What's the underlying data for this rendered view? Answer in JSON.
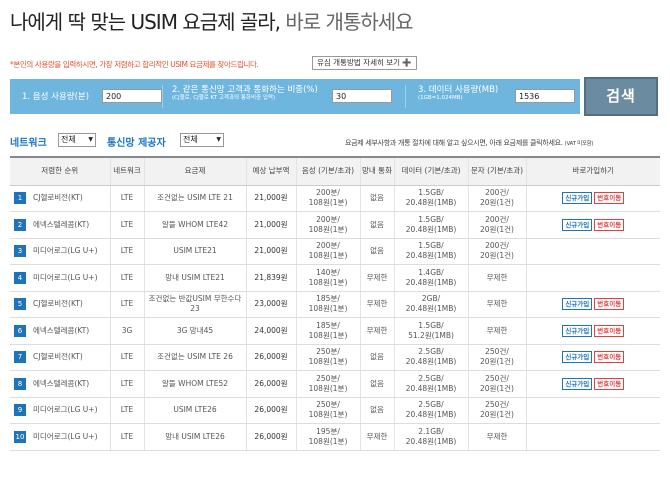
{
  "header": {
    "title_main": "나에게 딱 맞는 USIM 요금제 골라,",
    "title_sub": " 바로 개통하세요"
  },
  "notice": "*본인의 사용량을 입력하시면, 가장 저렴하고 합리적인 USIM 요금제를 찾아드립니다.",
  "guide_button": "유심 개통방법 자세히 보기 ➕",
  "search": {
    "voice_label": "1. 음성 사용량(분)",
    "voice_value": "200",
    "same_net_label": "2. 같은 통신망 고객과 통화하는 비중(%)",
    "same_net_sub": "(CJ헬로, CJ헬로 KT 고객과의 통화비중 입력)",
    "same_net_value": "30",
    "data_label": "3. 데이터 사용량(MB)",
    "data_sub": "(1GB=1,024MB)",
    "data_value": "1536",
    "button": "검색"
  },
  "filters": {
    "network_label": "네트워크",
    "network_value": "전체",
    "provider_label": "통신망 제공자",
    "provider_value": "전체",
    "note": "요금제 세부사항과 개통 절차에 대해 알고 싶으시면, 아래 요금제를 클릭하세요.",
    "note_vat": "(VAT 미포함)"
  },
  "table": {
    "headers": {
      "rank": "저렴한 순위",
      "network": "네트워크",
      "plan": "요금제",
      "price": "예상 납부액",
      "voice": "음성 (기본/초과)",
      "intra": "망내 통화",
      "data": "데이터 (기본/초과)",
      "sms": "문자 (기본/초과)",
      "join": "바로가입하기"
    },
    "new_label": "신규가입",
    "port_label": "번호이동",
    "rows": [
      {
        "no": "1",
        "carrier": "CJ헬로비전(KT)",
        "network": "LTE",
        "plan": "조건없는 USIM LTE 21",
        "price": "21,000원",
        "voice": "200분/",
        "voice2": "108원(1분)",
        "intra": "없음",
        "data": "1.5GB/",
        "data2": "20.48원(1MB)",
        "sms": "200건/",
        "sms2": "20원(1건)",
        "new": true,
        "port": true
      },
      {
        "no": "2",
        "carrier": "에넥스텔레콤(KT)",
        "network": "LTE",
        "plan": "알뜰 WHOM LTE42",
        "price": "21,000원",
        "voice": "200분/",
        "voice2": "108원(1분)",
        "intra": "없음",
        "data": "1.5GB/",
        "data2": "20.48원(1MB)",
        "sms": "200건/",
        "sms2": "20원(1건)",
        "new": true,
        "port": true
      },
      {
        "no": "3",
        "carrier": "미디어로그(LG U+)",
        "network": "LTE",
        "plan": "USIM LTE21",
        "price": "21,000원",
        "voice": "200분/",
        "voice2": "108원(1분)",
        "intra": "없음",
        "data": "1.5GB/",
        "data2": "20.48원(1MB)",
        "sms": "200건/",
        "sms2": "20원(1건)",
        "new": false,
        "port": false
      },
      {
        "no": "4",
        "carrier": "미디어로그(LG U+)",
        "network": "LTE",
        "plan": "망내 USIM LTE21",
        "price": "21,839원",
        "voice": "140분/",
        "voice2": "108원(1분)",
        "intra": "무제한",
        "data": "1.4GB/",
        "data2": "20.48원(1MB)",
        "sms": "무제한",
        "sms2": "",
        "new": false,
        "port": false
      },
      {
        "no": "5",
        "carrier": "CJ헬로비전(KT)",
        "network": "LTE",
        "plan": "조건없는 반값USIM 무한수다23",
        "price": "23,000원",
        "voice": "185분/",
        "voice2": "108원(1분)",
        "intra": "무제한",
        "data": "2GB/",
        "data2": "20.48원(1MB)",
        "sms": "무제한",
        "sms2": "",
        "new": true,
        "port": true
      },
      {
        "no": "6",
        "carrier": "에넥스텔레콤(KT)",
        "network": "3G",
        "plan": "3G 망내45",
        "price": "24,000원",
        "voice": "185분/",
        "voice2": "108원(1분)",
        "intra": "무제한",
        "data": "1.5GB/",
        "data2": "51.2원(1MB)",
        "sms": "무제한",
        "sms2": "",
        "new": true,
        "port": true
      },
      {
        "no": "7",
        "carrier": "CJ헬로비전(KT)",
        "network": "LTE",
        "plan": "조건없는 USIM LTE 26",
        "price": "26,000원",
        "voice": "250분/",
        "voice2": "108원(1분)",
        "intra": "없음",
        "data": "2.5GB/",
        "data2": "20.48원(1MB)",
        "sms": "250건/",
        "sms2": "20원(1건)",
        "new": true,
        "port": true
      },
      {
        "no": "8",
        "carrier": "에넥스텔레콤(KT)",
        "network": "LTE",
        "plan": "알뜰 WHOM LTE52",
        "price": "26,000원",
        "voice": "250분/",
        "voice2": "108원(1분)",
        "intra": "없음",
        "data": "2.5GB/",
        "data2": "20.48원(1MB)",
        "sms": "250건/",
        "sms2": "20원(1건)",
        "new": true,
        "port": true
      },
      {
        "no": "9",
        "carrier": "미디어로그(LG U+)",
        "network": "LTE",
        "plan": "USIM LTE26",
        "price": "26,000원",
        "voice": "250분/",
        "voice2": "108원(1분)",
        "intra": "없음",
        "data": "2.5GB/",
        "data2": "20.48원(1MB)",
        "sms": "250건/",
        "sms2": "20원(1건)",
        "new": false,
        "port": false
      },
      {
        "no": "10",
        "carrier": "미디어로그(LG U+)",
        "network": "LTE",
        "plan": "망내 USIM LTE26",
        "price": "26,000원",
        "voice": "195분/",
        "voice2": "108원(1분)",
        "intra": "무제한",
        "data": "2.1GB/",
        "data2": "20.48원(1MB)",
        "sms": "무제한",
        "sms2": "",
        "new": false,
        "port": false
      }
    ]
  }
}
